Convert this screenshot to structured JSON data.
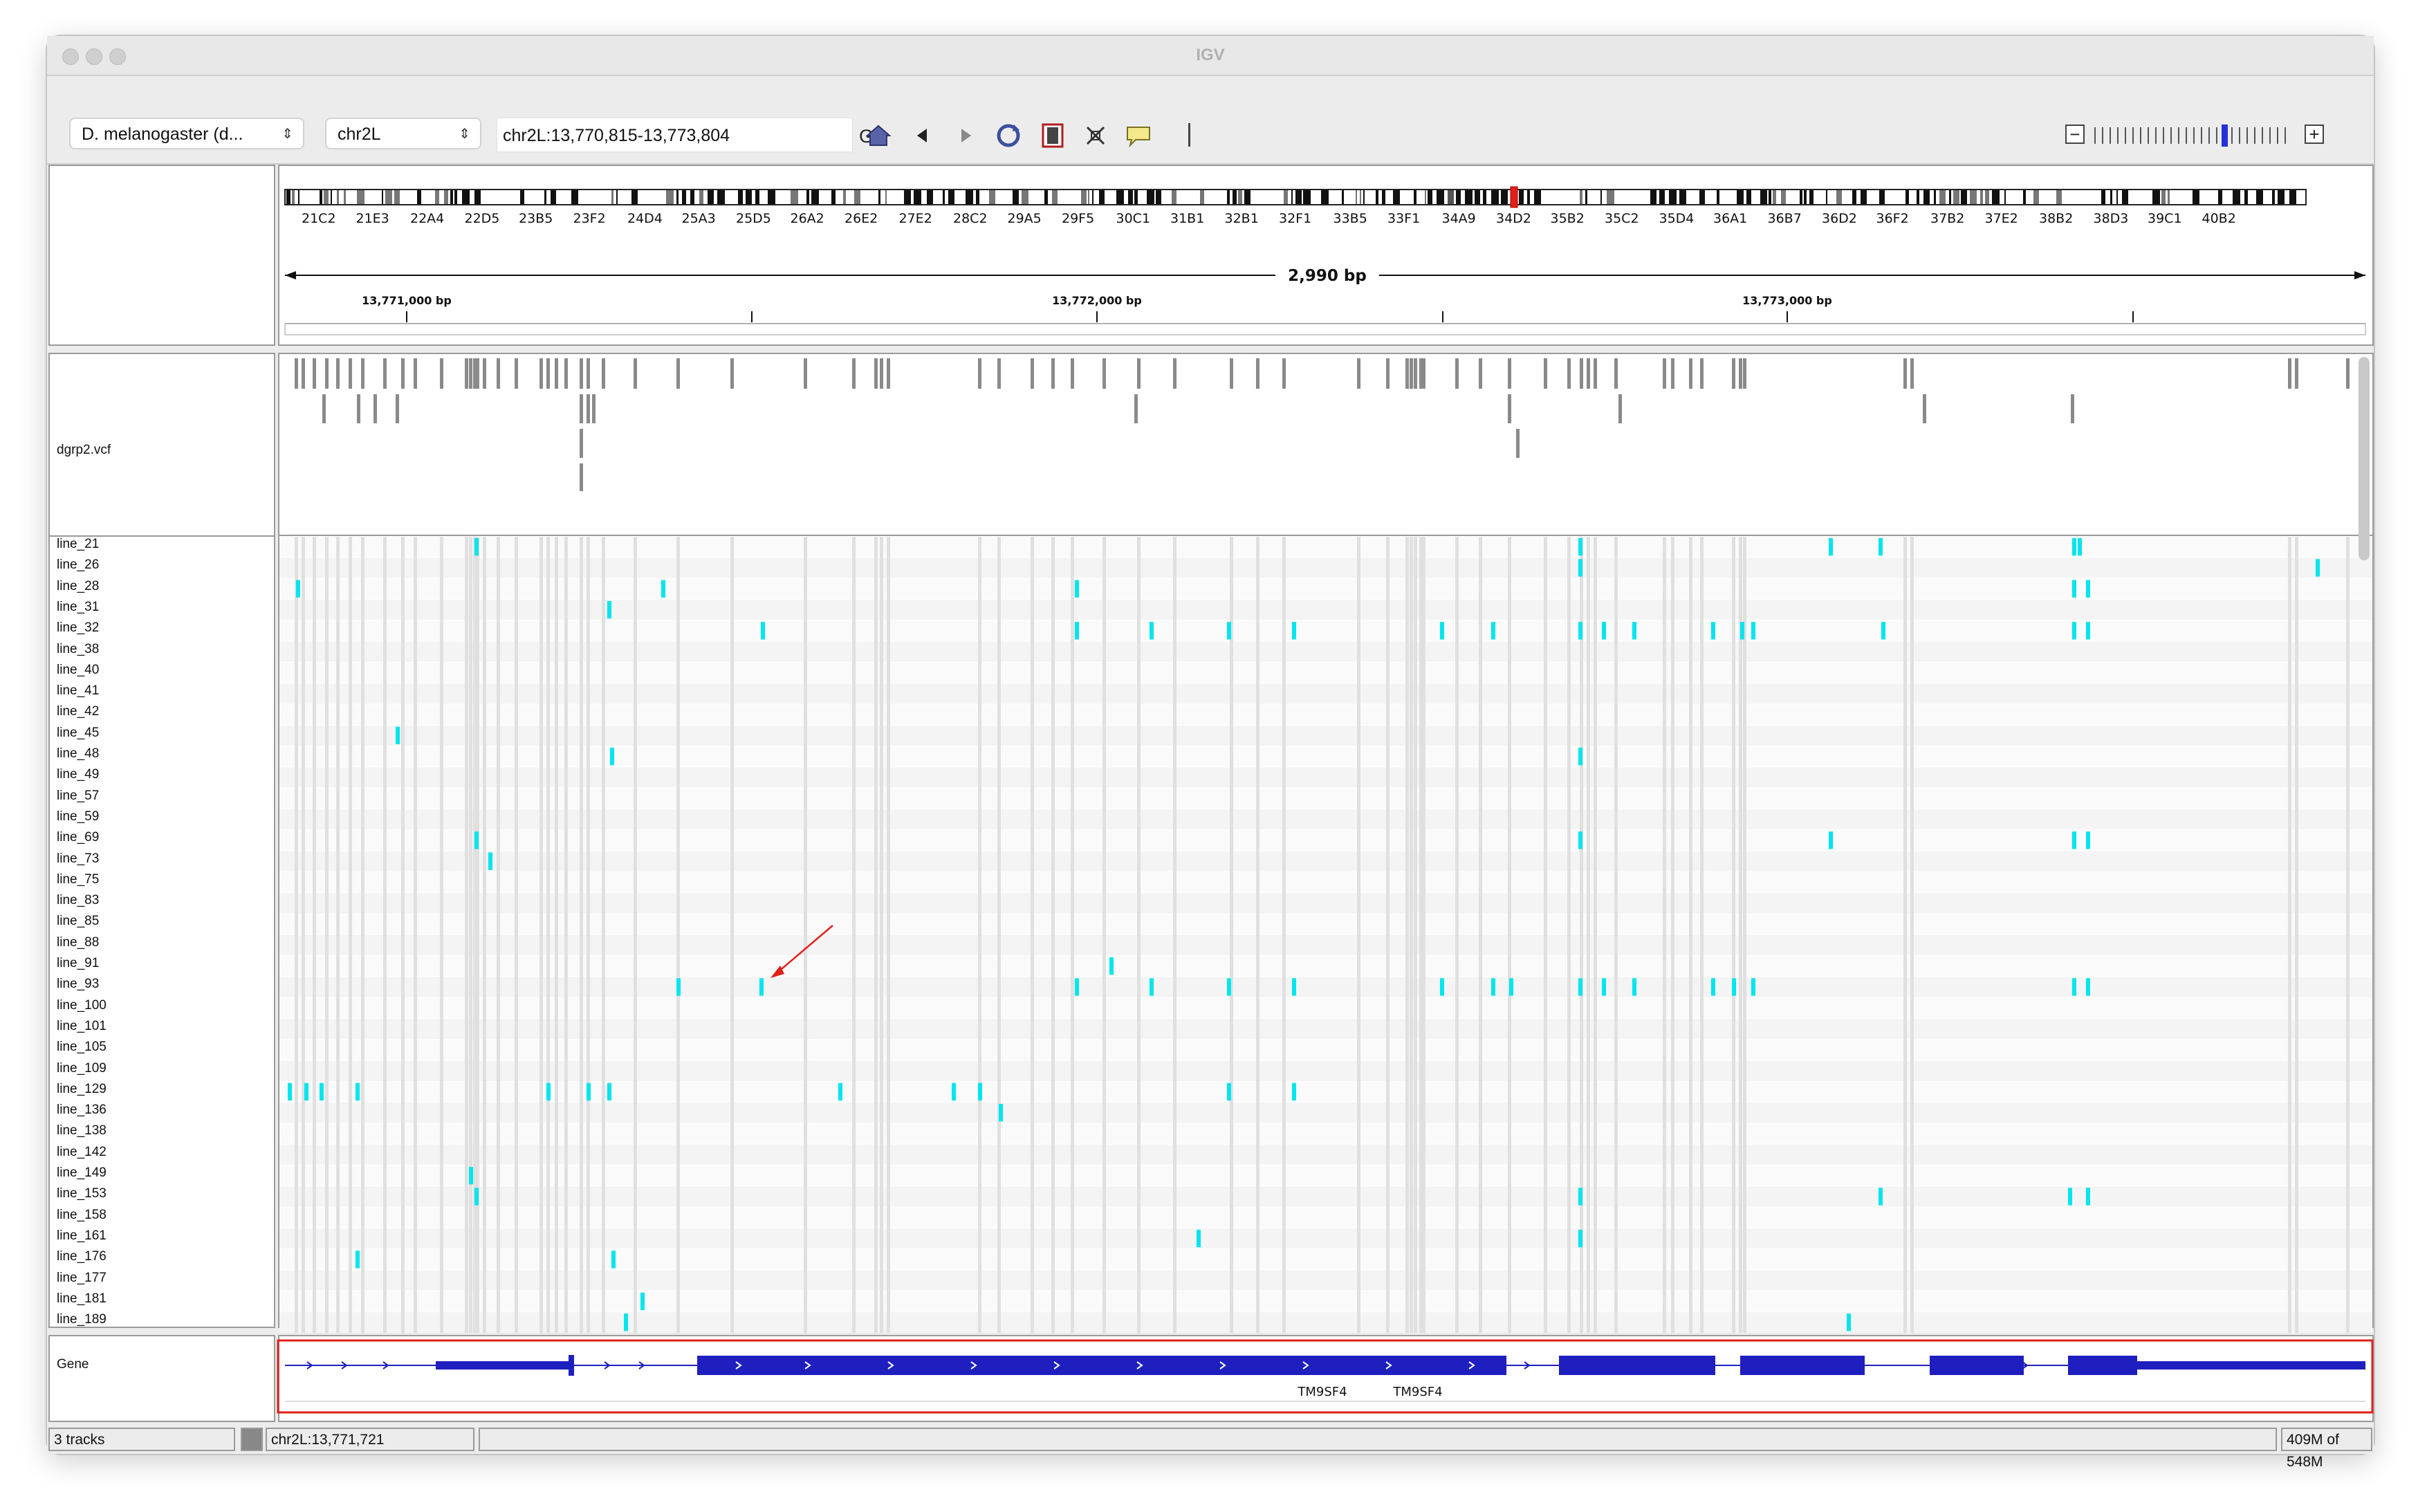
{
  "window": {
    "title": "IGV"
  },
  "toolbar": {
    "genome": "D. melanogaster (d...",
    "chromosome": "chr2L",
    "locus": "chr2L:13,770,815-13,773,804",
    "go_label": "Go",
    "icons": [
      "home-icon",
      "back-icon",
      "forward-icon",
      "refresh-icon",
      "ruler-icon",
      "fit-icon",
      "popup-icon"
    ]
  },
  "ideogram": {
    "bands": [
      "21C2",
      "21E3",
      "22A4",
      "22D5",
      "23B5",
      "23F2",
      "24D4",
      "25A3",
      "25D5",
      "26A2",
      "26E2",
      "27E2",
      "28C2",
      "29A5",
      "29F5",
      "30C1",
      "31B1",
      "32B1",
      "32F1",
      "33B5",
      "33F1",
      "34A9",
      "34D2",
      "35B2",
      "35C2",
      "35D4",
      "36A1",
      "36B7",
      "36D2",
      "36F2",
      "37B2",
      "37E2",
      "38B2",
      "38D3",
      "39C1",
      "40B2"
    ],
    "highlight_color": "#e0201a"
  },
  "ruler": {
    "span": "2,990 bp",
    "ticks": [
      "13,771,000 bp",
      "13,772,000 bp",
      "13,773,000 bp"
    ]
  },
  "tracks": {
    "vcf_name": "dgrp2.vcf",
    "gene_name": "Gene",
    "genotype_color": "#00e5ee",
    "samples": [
      "line_21",
      "line_26",
      "line_28",
      "line_31",
      "line_32",
      "line_38",
      "line_40",
      "line_41",
      "line_42",
      "line_45",
      "line_48",
      "line_49",
      "line_57",
      "line_59",
      "line_69",
      "line_73",
      "line_75",
      "line_83",
      "line_85",
      "line_88",
      "line_91",
      "line_93",
      "line_100",
      "line_101",
      "line_105",
      "line_109",
      "line_129",
      "line_136",
      "line_138",
      "line_142",
      "line_149",
      "line_153",
      "line_158",
      "line_161",
      "line_176",
      "line_177",
      "line_181",
      "line_189"
    ],
    "gene_labels": [
      "TM9SF4",
      "TM9SF4"
    ],
    "gene_color": "#1f1fbf"
  },
  "status": {
    "tracks": "3 tracks",
    "position": "chr2L:13,771,721",
    "memory": "409M of 548M"
  }
}
